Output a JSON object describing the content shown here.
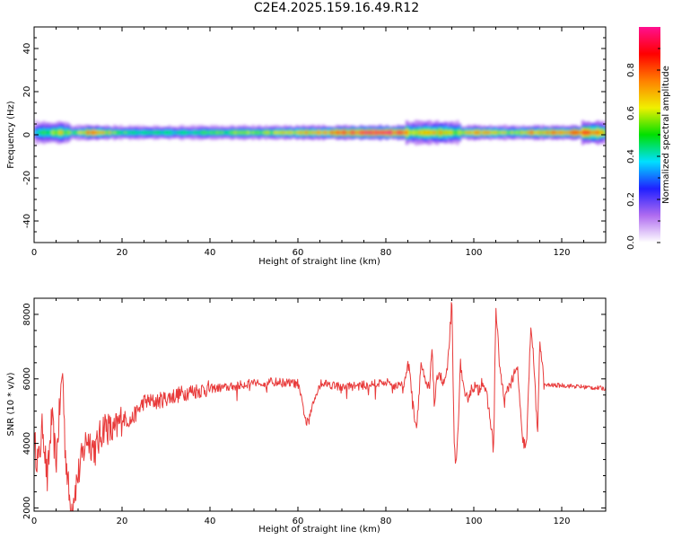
{
  "figure": {
    "title": "C2E4.2025.159.16.49.R12",
    "colors": {
      "line": "#e83a3a",
      "axis": "#000000",
      "background": "#ffffff"
    }
  },
  "chart_data": [
    {
      "type": "heatmap",
      "title": "",
      "xlabel": "Height of straight line (km)",
      "ylabel": "Frequency (Hz)",
      "xlim": [
        0,
        130
      ],
      "ylim": [
        -50,
        50
      ],
      "x_ticks": [
        0,
        20,
        40,
        60,
        80,
        100,
        120
      ],
      "y_ticks": [
        -40,
        -20,
        0,
        20,
        40
      ],
      "grid": false,
      "colorbar": {
        "label": "Normalized spectral amplitude",
        "range": [
          0,
          1
        ],
        "ticks": [
          "0.0",
          "0.2",
          "0.4",
          "0.6",
          "0.8"
        ],
        "colormap": [
          "#ffffff",
          "#b06cf0",
          "#2020ff",
          "#00e0ff",
          "#00e000",
          "#f0f000",
          "#ff8000",
          "#ff0000",
          "#ff1090"
        ]
      },
      "band": {
        "center_hz": 1,
        "half_width_hz_baseline": 1.5,
        "anchors_km": [
          0,
          3,
          6,
          9,
          12,
          15,
          20,
          25,
          30,
          40,
          50,
          60,
          70,
          75,
          80,
          84,
          86,
          90,
          95,
          98,
          100,
          103,
          105,
          110,
          113,
          115,
          118,
          125,
          130
        ],
        "intensity": [
          0.4,
          0.5,
          0.6,
          0.5,
          0.8,
          0.7,
          0.5,
          0.45,
          0.45,
          0.5,
          0.55,
          0.65,
          0.85,
          0.92,
          0.92,
          0.85,
          0.6,
          0.7,
          0.6,
          0.6,
          0.75,
          0.7,
          0.6,
          0.6,
          0.8,
          0.65,
          0.8,
          0.8,
          0.65
        ]
      }
    },
    {
      "type": "line",
      "title": "",
      "xlabel": "Height of straight line (km)",
      "ylabel": "SNR (10 * v/v)",
      "xlim": [
        0,
        130
      ],
      "ylim": [
        1900,
        8500
      ],
      "x_ticks": [
        0,
        20,
        40,
        60,
        80,
        100,
        120
      ],
      "y_ticks": [
        2000,
        4000,
        6000,
        8000
      ],
      "grid": false,
      "series": [
        {
          "name": "",
          "x": [
            0,
            1,
            2,
            3,
            4,
            5,
            6,
            6.5,
            7,
            8,
            8.5,
            9,
            10,
            12,
            14,
            16,
            18,
            20,
            22,
            25,
            28,
            30,
            35,
            40,
            45,
            50,
            55,
            60,
            62,
            65,
            70,
            75,
            80,
            82,
            84,
            85,
            85.5,
            86,
            87,
            88,
            89,
            90,
            90.5,
            91,
            92,
            93,
            94,
            95,
            95.5,
            96,
            97,
            98,
            100,
            101,
            102,
            103,
            104,
            104.5,
            105,
            106,
            107,
            108,
            110,
            111,
            112,
            113,
            114,
            114.5,
            115,
            116,
            120,
            125,
            130
          ],
          "values": [
            4000,
            3400,
            4600,
            2800,
            4800,
            3400,
            5400,
            6300,
            4000,
            2300,
            2000,
            2400,
            3000,
            4200,
            3800,
            4600,
            4300,
            4800,
            4700,
            5300,
            5300,
            5400,
            5600,
            5700,
            5750,
            5900,
            5900,
            5850,
            4600,
            5900,
            5750,
            5800,
            5900,
            5800,
            5800,
            6400,
            6300,
            5300,
            4500,
            6500,
            5800,
            5700,
            7100,
            5200,
            6300,
            5800,
            6200,
            8400,
            4100,
            3200,
            6500,
            5300,
            5800,
            5600,
            6000,
            5400,
            4500,
            3700,
            8200,
            6200,
            5300,
            5800,
            6300,
            4100,
            3900,
            7800,
            5700,
            4000,
            7300,
            5800,
            5800,
            5750,
            5700
          ]
        }
      ]
    }
  ]
}
